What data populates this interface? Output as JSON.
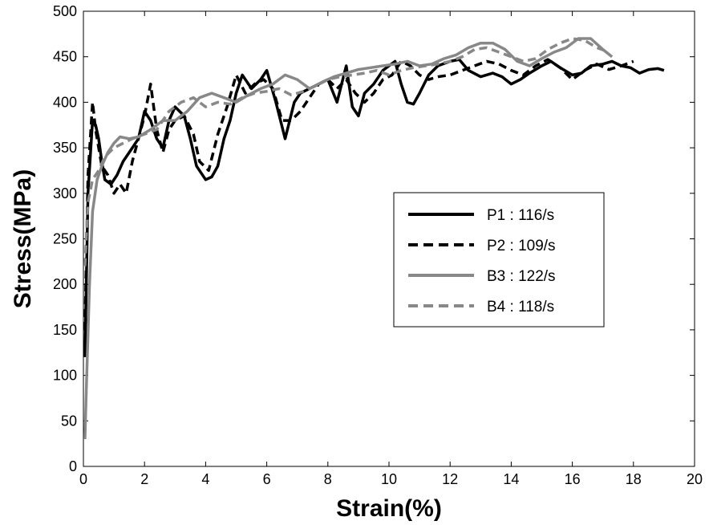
{
  "chart_data": {
    "type": "line",
    "xlabel": "Strain(%)",
    "ylabel": "Stress(MPa)",
    "xlim": [
      0,
      20
    ],
    "ylim": [
      0,
      500
    ],
    "xticks": [
      0,
      2,
      4,
      6,
      8,
      10,
      12,
      14,
      16,
      18,
      20
    ],
    "yticks": [
      0,
      50,
      100,
      150,
      200,
      250,
      300,
      350,
      400,
      450,
      500
    ],
    "grid": false,
    "legend_position": "center-right",
    "series": [
      {
        "name": "P1 : 116/s",
        "color": "#000000",
        "dash": "solid",
        "x": [
          0.05,
          0.15,
          0.3,
          0.4,
          0.5,
          0.6,
          0.7,
          0.9,
          1.1,
          1.3,
          1.6,
          1.8,
          2.0,
          2.2,
          2.4,
          2.6,
          2.8,
          3.0,
          3.3,
          3.5,
          3.7,
          4.0,
          4.2,
          4.4,
          4.6,
          4.8,
          5.0,
          5.2,
          5.5,
          5.8,
          6.0,
          6.3,
          6.6,
          6.9,
          7.1,
          7.4,
          7.7,
          8.0,
          8.3,
          8.6,
          8.8,
          9.0,
          9.2,
          9.5,
          9.8,
          10.0,
          10.2,
          10.4,
          10.6,
          10.8,
          11.0,
          11.3,
          11.6,
          12.0,
          12.3,
          12.6,
          13.0,
          13.4,
          13.7,
          14.0,
          14.3,
          14.6,
          15.0,
          15.3,
          15.6,
          16.0,
          16.3,
          16.6,
          17.0,
          17.3,
          17.6,
          17.9,
          18.2,
          18.5,
          18.8,
          19.0
        ],
        "y": [
          120,
          300,
          380,
          375,
          360,
          335,
          315,
          310,
          320,
          335,
          350,
          360,
          390,
          380,
          360,
          350,
          380,
          395,
          385,
          360,
          330,
          315,
          318,
          330,
          360,
          380,
          410,
          430,
          415,
          425,
          435,
          400,
          360,
          400,
          410,
          415,
          420,
          425,
          400,
          440,
          395,
          385,
          410,
          420,
          435,
          440,
          445,
          420,
          400,
          398,
          410,
          430,
          440,
          445,
          447,
          435,
          428,
          432,
          428,
          420,
          425,
          432,
          440,
          445,
          438,
          430,
          432,
          440,
          442,
          445,
          440,
          438,
          432,
          436,
          437,
          435
        ]
      },
      {
        "name": "P2 : 109/s",
        "color": "#000000",
        "dash": "dashed",
        "x": [
          0.05,
          0.15,
          0.3,
          0.4,
          0.5,
          0.6,
          0.8,
          1.0,
          1.2,
          1.4,
          1.6,
          1.8,
          2.0,
          2.2,
          2.4,
          2.6,
          2.8,
          3.0,
          3.3,
          3.6,
          3.8,
          4.1,
          4.4,
          4.7,
          5.0,
          5.3,
          5.6,
          5.9,
          6.2,
          6.5,
          6.8,
          7.1,
          7.4,
          7.7,
          8.0,
          8.3,
          8.6,
          8.9,
          9.2,
          9.5,
          9.8,
          10.1,
          10.4,
          10.7,
          11.0,
          11.3,
          11.6,
          12.0,
          12.4,
          12.8,
          13.2,
          13.6,
          14.0,
          14.4,
          14.8,
          15.2,
          15.6,
          16.0,
          16.4,
          16.8,
          17.2,
          17.6,
          18.0
        ],
        "y": [
          150,
          320,
          400,
          370,
          350,
          330,
          320,
          300,
          310,
          300,
          335,
          360,
          385,
          420,
          370,
          345,
          370,
          380,
          385,
          365,
          335,
          325,
          365,
          395,
          430,
          410,
          420,
          425,
          415,
          380,
          380,
          390,
          405,
          420,
          425,
          415,
          425,
          410,
          400,
          410,
          425,
          430,
          445,
          440,
          430,
          425,
          428,
          430,
          435,
          440,
          445,
          442,
          435,
          430,
          440,
          447,
          438,
          425,
          435,
          442,
          436,
          440,
          445
        ]
      },
      {
        "name": "B3 : 122/s",
        "color": "#888888",
        "dash": "solid",
        "x": [
          0.05,
          0.1,
          0.2,
          0.3,
          0.45,
          0.6,
          0.8,
          1.0,
          1.2,
          1.5,
          1.8,
          2.2,
          2.6,
          3.0,
          3.4,
          3.8,
          4.2,
          4.6,
          5.0,
          5.4,
          5.8,
          6.2,
          6.6,
          7.0,
          7.4,
          7.8,
          8.2,
          8.6,
          9.0,
          9.4,
          9.8,
          10.2,
          10.6,
          11.0,
          11.4,
          11.8,
          12.2,
          12.6,
          13.0,
          13.4,
          13.8,
          14.2,
          14.6,
          15.0,
          15.4,
          15.8,
          16.2,
          16.6,
          17.0,
          17.3
        ],
        "y": [
          30,
          90,
          200,
          280,
          315,
          330,
          345,
          355,
          362,
          360,
          362,
          370,
          380,
          380,
          390,
          405,
          410,
          405,
          400,
          408,
          415,
          420,
          430,
          425,
          415,
          422,
          428,
          432,
          436,
          438,
          440,
          442,
          445,
          440,
          442,
          448,
          452,
          460,
          465,
          465,
          458,
          445,
          440,
          448,
          455,
          460,
          470,
          470,
          458,
          450
        ]
      },
      {
        "name": "B4 : 118/s",
        "color": "#888888",
        "dash": "dashed",
        "x": [
          0.05,
          0.15,
          0.3,
          0.5,
          0.7,
          1.0,
          1.3,
          1.6,
          2.0,
          2.4,
          2.8,
          3.2,
          3.6,
          4.0,
          4.4,
          4.8,
          5.2,
          5.6,
          6.0,
          6.4,
          6.8,
          7.2,
          7.6,
          8.0,
          8.4,
          8.8,
          9.2,
          9.6,
          10.0,
          10.4,
          10.8,
          11.2,
          11.6,
          12.0,
          12.4,
          12.8,
          13.2,
          13.6,
          14.0,
          14.4,
          14.8,
          15.2,
          15.6,
          16.0,
          16.4,
          16.8,
          17.2
        ],
        "y": [
          220,
          290,
          315,
          325,
          340,
          350,
          355,
          360,
          365,
          370,
          390,
          400,
          405,
          395,
          400,
          398,
          405,
          410,
          412,
          415,
          408,
          412,
          418,
          425,
          428,
          430,
          432,
          435,
          430,
          435,
          438,
          440,
          442,
          445,
          450,
          458,
          460,
          455,
          450,
          445,
          448,
          458,
          465,
          470,
          468,
          460,
          455
        ]
      }
    ]
  }
}
